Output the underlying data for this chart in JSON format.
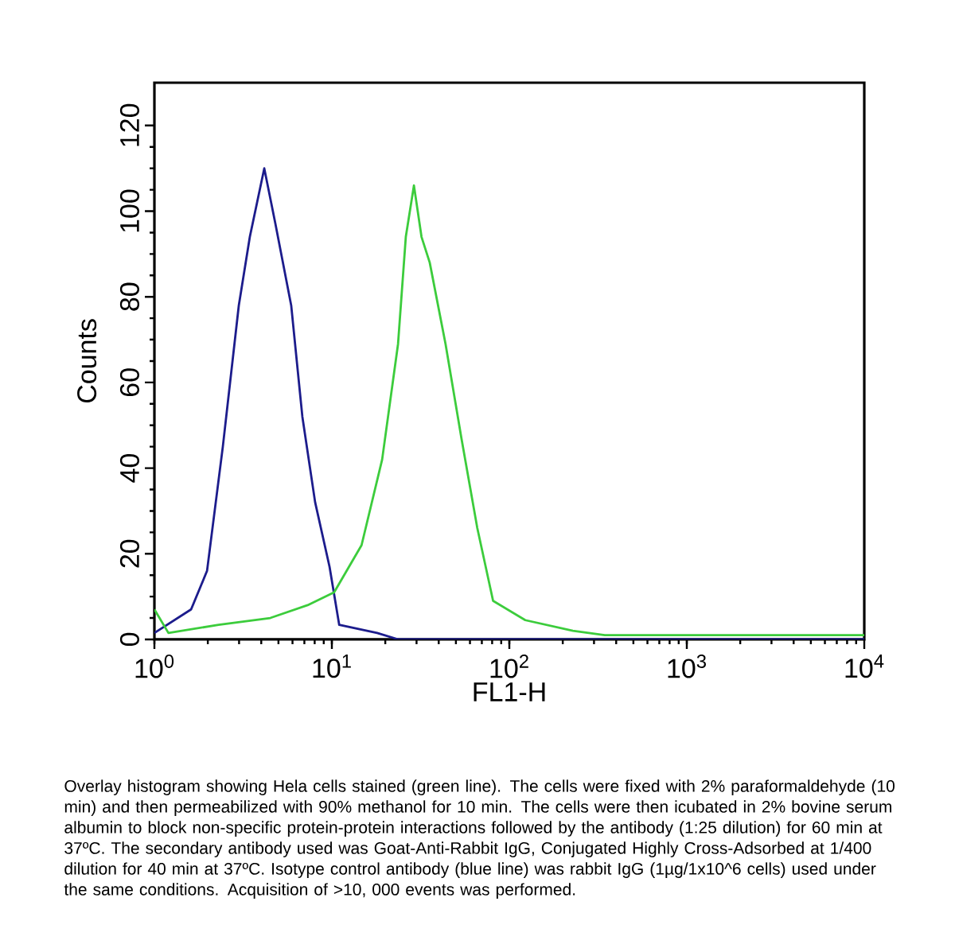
{
  "chart_data": {
    "type": "line",
    "xlabel": "FL1-H",
    "ylabel": "Counts",
    "log": "x",
    "xlim": [
      1,
      10000
    ],
    "ylim": [
      0,
      130
    ],
    "xticks": [
      {
        "value": 1,
        "label": "10$^{0}$"
      },
      {
        "value": 10,
        "label": "10$^{1}$"
      },
      {
        "value": 100,
        "label": "10$^{2}$"
      },
      {
        "value": 1000,
        "label": "10$^{3}$"
      },
      {
        "value": 10000,
        "label": "10$^{4}$"
      }
    ],
    "yticks": [
      0,
      20,
      40,
      60,
      80,
      100,
      120
    ],
    "series": [
      {
        "color": "#1c1c8c",
        "x": [
          1.0,
          1.61,
          1.98,
          2.43,
          2.99,
          3.45,
          4.16,
          4.81,
          5.9,
          6.82,
          8.05,
          9.7,
          11,
          18,
          23.7,
          100,
          1000,
          10000
        ],
        "values": [
          1.5,
          7,
          16,
          45,
          78,
          94,
          110,
          97,
          78,
          52,
          32,
          17,
          3.4,
          1.5,
          0,
          0,
          0,
          0
        ]
      },
      {
        "color": "#3ccc3c",
        "x": [
          1.0,
          1.2,
          2.3,
          4.5,
          7.3,
          10.3,
          14.7,
          19.2,
          23.6,
          26.1,
          29,
          32,
          35.6,
          43.7,
          53.7,
          66,
          81,
          123,
          228,
          345,
          1000,
          10000
        ],
        "values": [
          7,
          1.5,
          3.4,
          5,
          8,
          11,
          22,
          42,
          69,
          94,
          106,
          94,
          88,
          69,
          47,
          26,
          9,
          4.5,
          2,
          1,
          1,
          1
        ]
      }
    ],
    "annotations": [
      "Overlay histogram showing Hela cells stained (green line). The cells were fixed with 2% paraformaldehyde (10 min) and then permeabilized with 90% methanol for 10 min. The cells were then icubated in 2% bovine serum albumin to block non-specific protein-protein interactions followed by the antibody (1:25 dilution) for 60 min at 37ºC. The secondary antibody used was Goat-Anti-Rabbit IgG, Conjugated Highly Cross-Adsorbed at 1/400 dilution for 40 min at 37ºC. Isotype control antibody (blue line) was rabbit IgG (1µg/1x10^6 cells) used under the same conditions. Acquisition of >10, 000 events was performed."
    ]
  }
}
